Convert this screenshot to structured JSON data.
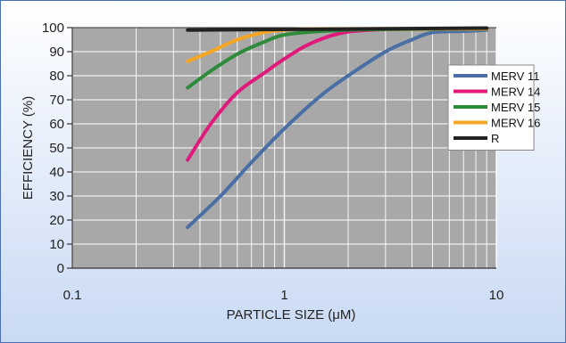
{
  "chart_data": {
    "type": "line",
    "title": "",
    "xlabel": "PARTICLE SIZE (μM)",
    "ylabel": "EFFICIENCY (%)",
    "xscale": "log",
    "xlim": [
      0.1,
      10
    ],
    "ylim": [
      0,
      100
    ],
    "x_ticks": [
      "0.1",
      "1",
      "10"
    ],
    "y_ticks": [
      "0",
      "10",
      "20",
      "30",
      "40",
      "50",
      "60",
      "70",
      "80",
      "90",
      "100"
    ],
    "grid": true,
    "legend_position": "right",
    "background_color": "#a8a8a8",
    "series": [
      {
        "name": "MERV 11",
        "color": "#4a6fa5",
        "x": [
          0.35,
          0.5,
          0.7,
          1.0,
          1.5,
          2.0,
          3.0,
          4.0,
          5.0,
          7.0,
          9.0
        ],
        "y": [
          17,
          30,
          44,
          58,
          72,
          80,
          90,
          95,
          98,
          98.5,
          99
        ]
      },
      {
        "name": "MERV 14",
        "color": "#e0197d",
        "x": [
          0.35,
          0.45,
          0.6,
          0.8,
          1.0,
          1.3,
          1.8,
          2.5,
          4.0,
          9.0
        ],
        "y": [
          45,
          60,
          73,
          81,
          87,
          93,
          97.5,
          99,
          99.5,
          99.5
        ]
      },
      {
        "name": "MERV 15",
        "color": "#2e8b3a",
        "x": [
          0.35,
          0.45,
          0.6,
          0.8,
          1.0,
          1.5,
          2.5,
          9.0
        ],
        "y": [
          75,
          82,
          89,
          94,
          97,
          98.5,
          99.2,
          99.5
        ]
      },
      {
        "name": "MERV 16",
        "color": "#f5a623",
        "x": [
          0.35,
          0.45,
          0.6,
          0.8,
          1.0,
          1.5,
          9.0
        ],
        "y": [
          86,
          90,
          95,
          98,
          99,
          99.5,
          99.5
        ]
      },
      {
        "name": "R",
        "color": "#222222",
        "x": [
          0.35,
          9.0
        ],
        "y": [
          99,
          99.8
        ]
      }
    ]
  }
}
